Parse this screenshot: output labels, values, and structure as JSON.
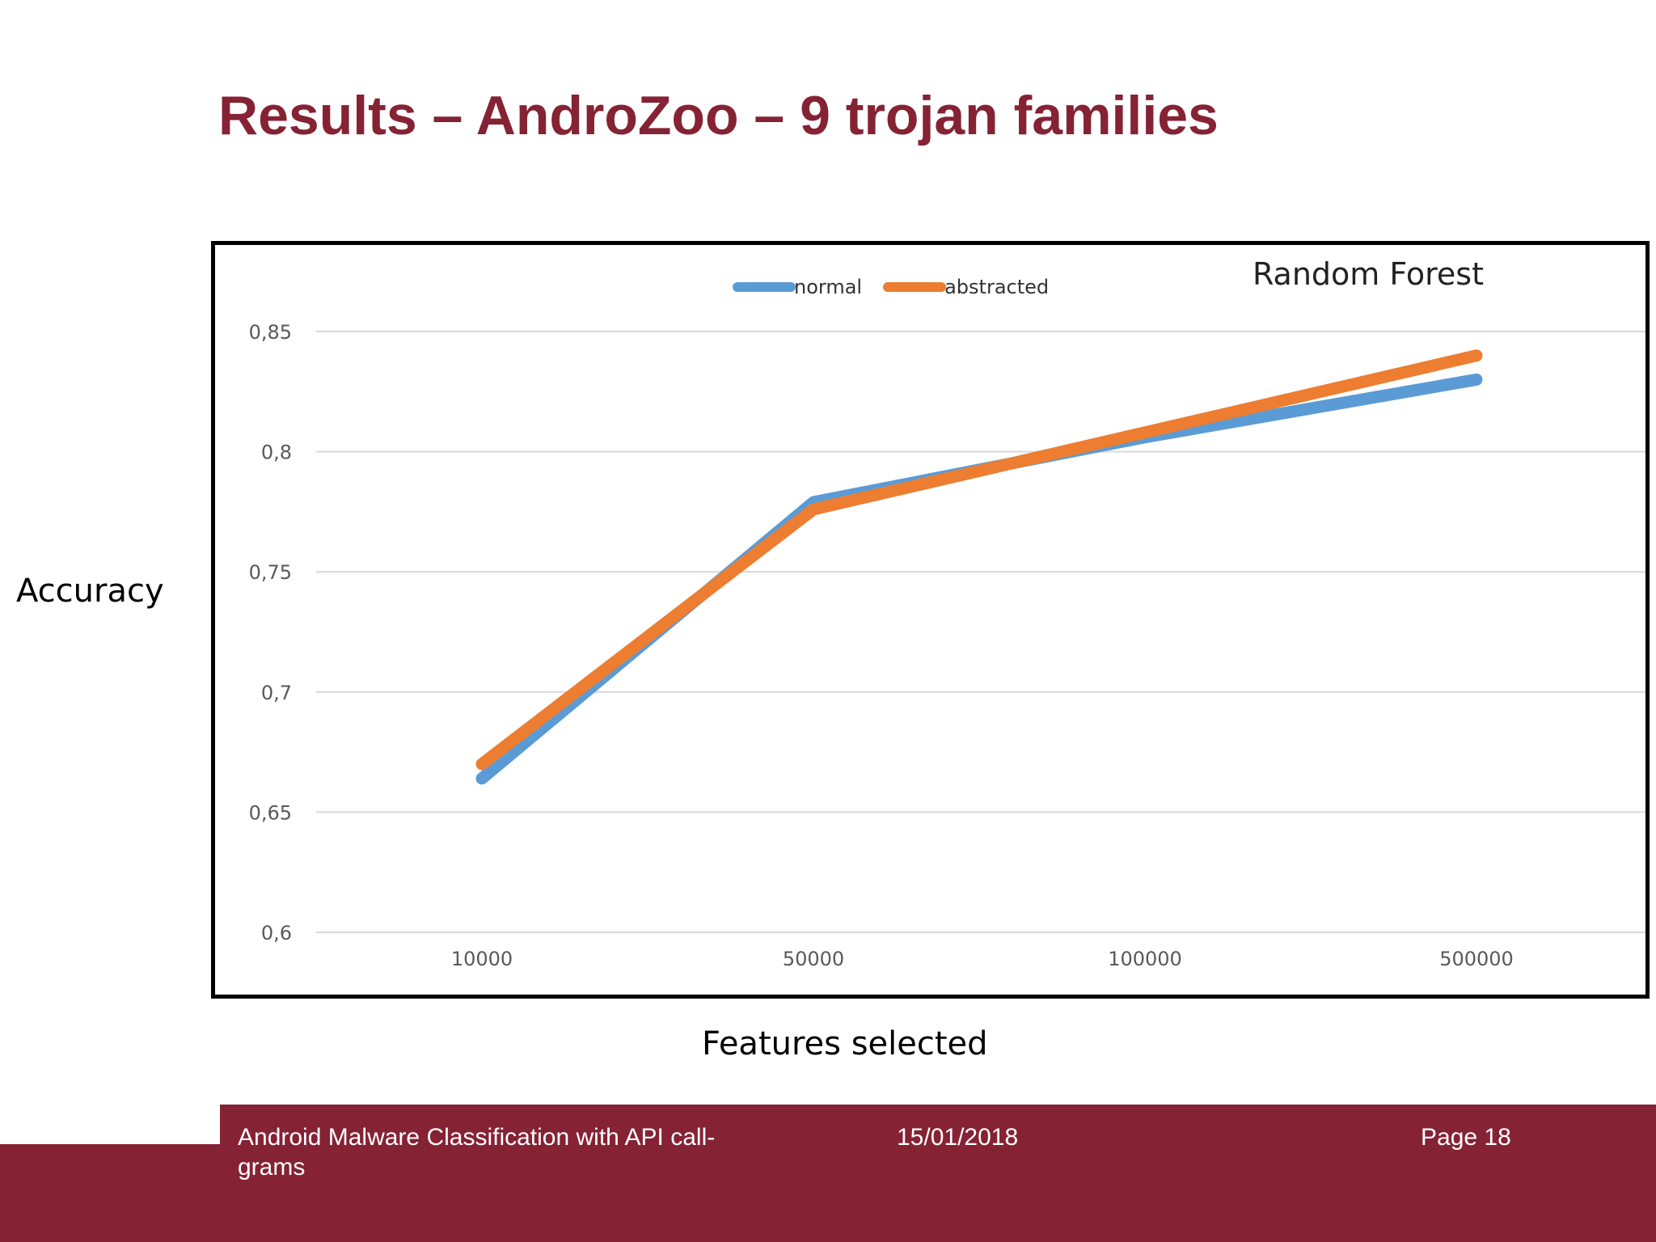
{
  "slide": {
    "title": "Results – AndroZoo – 9 trojan families",
    "y_axis_label": "Accuracy",
    "x_axis_label": "Features selected"
  },
  "footer": {
    "presentation_title": "Android Malware Classification with API call-grams",
    "date": "15/01/2018",
    "page": "Page 18",
    "color": "#852234"
  },
  "chart_data": {
    "type": "line",
    "title": "Random Forest",
    "categories": [
      "10000",
      "50000",
      "100000",
      "500000"
    ],
    "y_ticks": [
      "0,85",
      "0,8",
      "0,75",
      "0,7",
      "0,65",
      "0,6"
    ],
    "ylim": [
      0.6,
      0.85
    ],
    "grid": true,
    "legend_position": "top",
    "series": [
      {
        "name": "normal",
        "color": "#5B9BD5",
        "values": [
          0.664,
          0.779,
          0.806,
          0.83
        ]
      },
      {
        "name": "abstracted",
        "color": "#ED7D31",
        "values": [
          0.67,
          0.776,
          0.808,
          0.84
        ]
      }
    ]
  }
}
